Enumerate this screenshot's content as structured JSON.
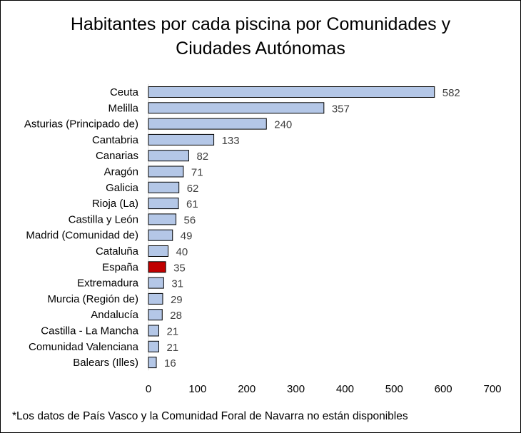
{
  "chart_data": {
    "type": "bar",
    "orientation": "horizontal",
    "title": "Habitantes por cada piscina por Comunidades y Ciudades Autónomas",
    "title_lines": [
      "Habitantes por cada piscina por Comunidades y",
      "Ciudades Autónomas"
    ],
    "categories": [
      "Ceuta",
      "Melilla",
      "Asturias (Principado de)",
      "Cantabria",
      "Canarias",
      "Aragón",
      "Galicia",
      "Rioja (La)",
      "Castilla y León",
      "Madrid (Comunidad de)",
      "Cataluña",
      "España",
      "Extremadura",
      "Murcia (Región de)",
      "Andalucía",
      "Castilla - La Mancha",
      "Comunidad Valenciana",
      "Balears (Illes)"
    ],
    "values": [
      582,
      357,
      240,
      133,
      82,
      71,
      62,
      61,
      56,
      49,
      40,
      35,
      31,
      29,
      28,
      21,
      21,
      16
    ],
    "highlight": "España",
    "xlim": [
      0,
      700
    ],
    "xticks": [
      0,
      100,
      200,
      300,
      400,
      500,
      600,
      700
    ],
    "grid": false,
    "data_labels": true,
    "colors": {
      "bar": "#B4C7E7",
      "highlight": "#C00000",
      "bar_border": "#000000"
    },
    "xlabel": "",
    "ylabel": ""
  },
  "footnote": "*Los datos de País Vasco y la Comunidad Foral de Navarra no están disponibles"
}
